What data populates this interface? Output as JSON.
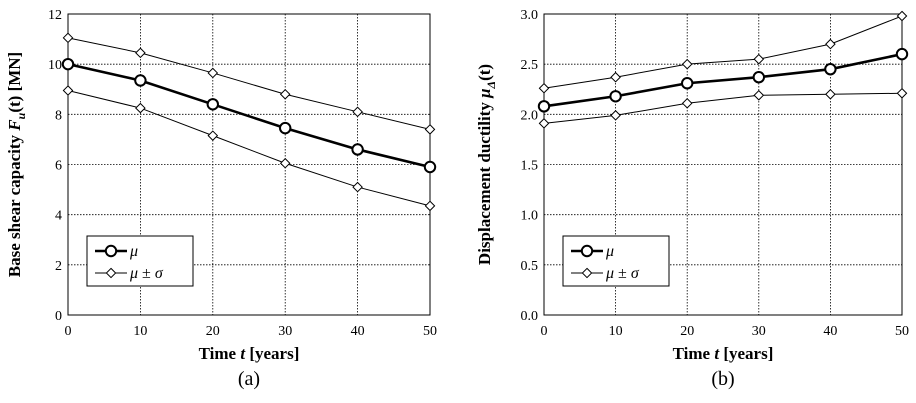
{
  "chart_data": [
    {
      "type": "line",
      "panel_label": "(a)",
      "xlabel_prefix": "Time ",
      "xlabel_var": "t",
      "xlabel_suffix": " [years]",
      "ylabel_prefix": "Base shear capacity ",
      "ylabel_var": "F",
      "ylabel_sub": "u",
      "ylabel_arg": "(t)",
      "ylabel_suffix": " [MN]",
      "x": [
        0,
        10,
        20,
        30,
        40,
        50
      ],
      "xlim": [
        0,
        50
      ],
      "ylim": [
        0,
        12
      ],
      "xticks": [
        "0",
        "10",
        "20",
        "30",
        "40",
        "50"
      ],
      "yticks": [
        "0",
        "2",
        "4",
        "6",
        "8",
        "10",
        "12"
      ],
      "grid": true,
      "legend_position": "lower-left",
      "series": [
        {
          "name": "μ",
          "role": "mean",
          "values": [
            10.0,
            9.35,
            8.4,
            7.45,
            6.6,
            5.9
          ]
        },
        {
          "name": "μ ± σ",
          "role": "upper",
          "values": [
            11.05,
            10.45,
            9.65,
            8.8,
            8.1,
            7.4
          ]
        },
        {
          "name": "μ ± σ",
          "role": "lower",
          "values": [
            8.95,
            8.25,
            7.15,
            6.05,
            5.1,
            4.35
          ]
        }
      ],
      "legend": [
        {
          "var": "μ",
          "rest": ""
        },
        {
          "var": "μ",
          "rest": " ± ",
          "var2": "σ"
        }
      ]
    },
    {
      "type": "line",
      "panel_label": "(b)",
      "xlabel_prefix": "Time ",
      "xlabel_var": "t",
      "xlabel_suffix": " [years]",
      "ylabel_prefix": "Displacement ductility ",
      "ylabel_var": "μ",
      "ylabel_sub": "Δ",
      "ylabel_arg": "(t)",
      "ylabel_suffix": "",
      "x": [
        0,
        10,
        20,
        30,
        40,
        50
      ],
      "xlim": [
        0,
        50
      ],
      "ylim": [
        0,
        3
      ],
      "xticks": [
        "0",
        "10",
        "20",
        "30",
        "40",
        "50"
      ],
      "yticks": [
        "0.0",
        "0.5",
        "1.0",
        "1.5",
        "2.0",
        "2.5",
        "3.0"
      ],
      "grid": true,
      "legend_position": "lower-left",
      "series": [
        {
          "name": "μ",
          "role": "mean",
          "values": [
            2.08,
            2.18,
            2.31,
            2.37,
            2.45,
            2.6
          ]
        },
        {
          "name": "μ ± σ",
          "role": "upper",
          "values": [
            2.26,
            2.37,
            2.5,
            2.55,
            2.7,
            2.98
          ]
        },
        {
          "name": "μ ± σ",
          "role": "lower",
          "values": [
            1.91,
            1.99,
            2.11,
            2.19,
            2.2,
            2.21
          ]
        }
      ],
      "legend": [
        {
          "var": "μ",
          "rest": ""
        },
        {
          "var": "μ",
          "rest": " ± ",
          "var2": "σ"
        }
      ]
    }
  ]
}
